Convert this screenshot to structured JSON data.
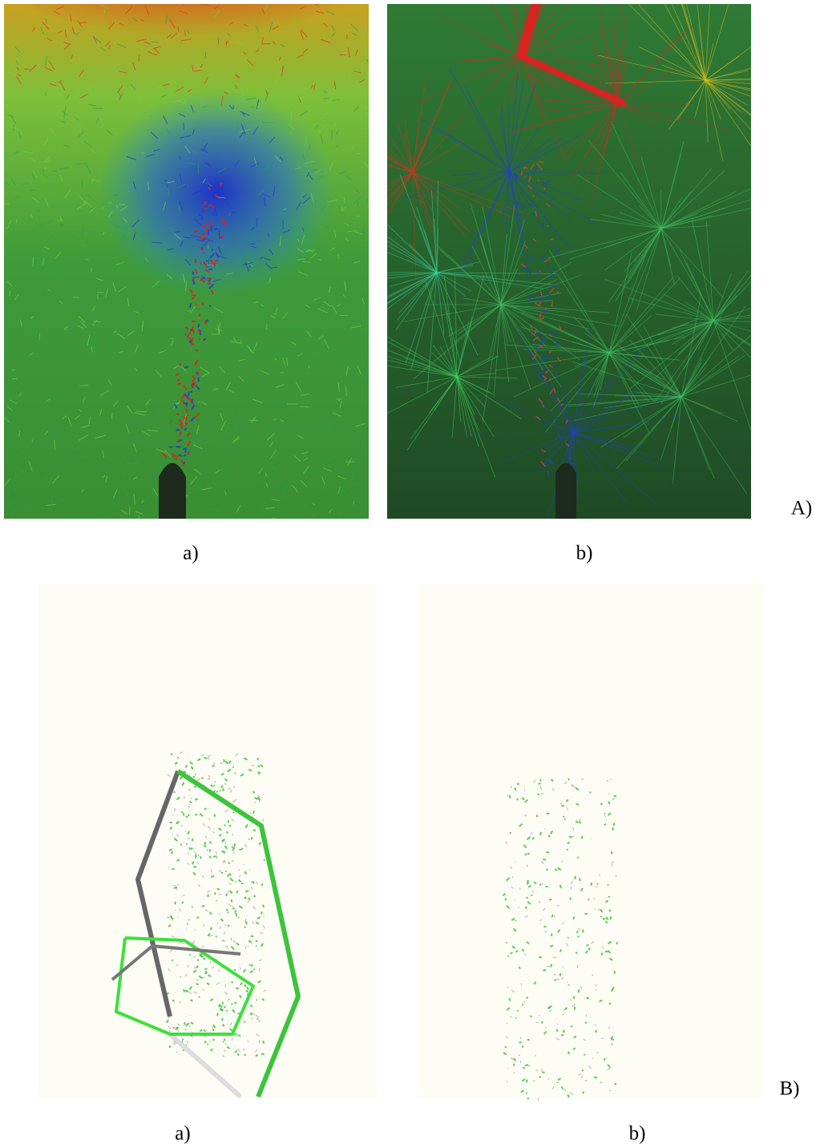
{
  "panels": [
    {
      "label": "A)",
      "subfigures": [
        {
          "caption": "a)"
        },
        {
          "caption": "b)"
        }
      ]
    },
    {
      "label": "B)",
      "subfigures": [
        {
          "caption": "a)"
        },
        {
          "caption": "b)"
        }
      ]
    }
  ]
}
